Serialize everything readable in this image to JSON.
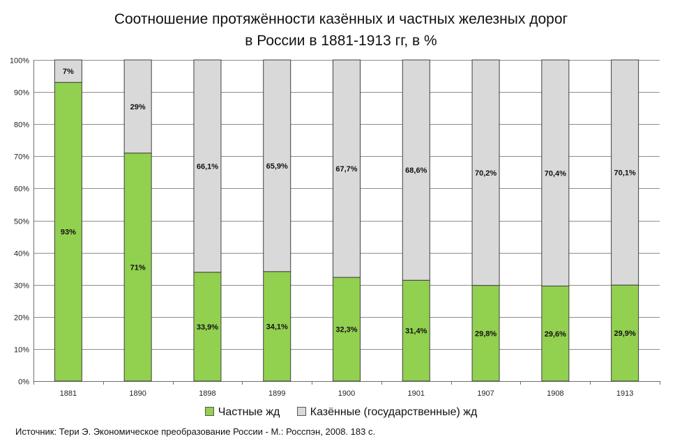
{
  "title_line1": "Соотношение протяжённости казённых и частных железных дорог",
  "title_line2": "в России в 1881-1913 гг, в %",
  "source": "Источник: Тери Э. Экономическое преобразование России - М.: Росспэн, 2008.  183 с.",
  "chart_data": {
    "type": "bar",
    "stacked": true,
    "title": "Соотношение протяжённости казённых и частных железных дорог в России в 1881-1913 гг, в %",
    "categories": [
      "1881",
      "1890",
      "1898",
      "1899",
      "1900",
      "1901",
      "1907",
      "1908",
      "1913"
    ],
    "series": [
      {
        "name": "Частные жд",
        "color": "#92d050",
        "values": [
          93,
          71,
          33.9,
          34.1,
          32.3,
          31.4,
          29.8,
          29.6,
          29.9
        ],
        "labels": [
          "93%",
          "71%",
          "33,9%",
          "34,1%",
          "32,3%",
          "31,4%",
          "29,8%",
          "29,6%",
          "29,9%"
        ]
      },
      {
        "name": "Казённые (государственные) жд",
        "color": "#d9d9d9",
        "values": [
          7,
          29,
          66.1,
          65.9,
          67.7,
          68.6,
          70.2,
          70.4,
          70.1
        ],
        "labels": [
          "7%",
          "29%",
          "66,1%",
          "65,9%",
          "67,7%",
          "68,6%",
          "70,2%",
          "70,4%",
          "70,1%"
        ]
      }
    ],
    "y_ticks": [
      "0%",
      "10%",
      "20%",
      "30%",
      "40%",
      "50%",
      "60%",
      "70%",
      "80%",
      "90%",
      "100%"
    ],
    "ylim": [
      0,
      100
    ],
    "grid": true,
    "legend_position": "bottom"
  }
}
